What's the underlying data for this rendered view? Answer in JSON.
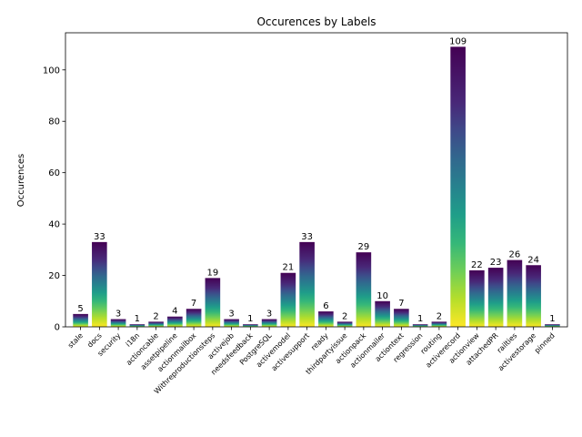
{
  "chart_data": {
    "type": "bar",
    "title": "Occurences by Labels",
    "xlabel": "",
    "ylabel": "Occurences",
    "ylim": [
      0,
      114.45
    ],
    "yticks": [
      0,
      20,
      40,
      60,
      80,
      100
    ],
    "colormap": "viridis",
    "grid": false,
    "categories": [
      "stale",
      "docs",
      "security",
      "i18n",
      "actioncable",
      "assetpipeline",
      "actionmailbox",
      "Withreproductionsteps",
      "activejob",
      "needsfeedback",
      "PostgreSQL",
      "activemodel",
      "activesupport",
      "ready",
      "thirdpartyissue",
      "actionpack",
      "actionmailer",
      "actiontext",
      "regression",
      "routing",
      "activerecord",
      "actionview",
      "attachedPR",
      "railties",
      "activestorage",
      "pinned"
    ],
    "values": [
      5,
      33,
      3,
      1,
      2,
      4,
      7,
      19,
      3,
      1,
      3,
      21,
      33,
      6,
      2,
      29,
      10,
      7,
      1,
      2,
      109,
      22,
      23,
      26,
      24,
      1
    ]
  }
}
